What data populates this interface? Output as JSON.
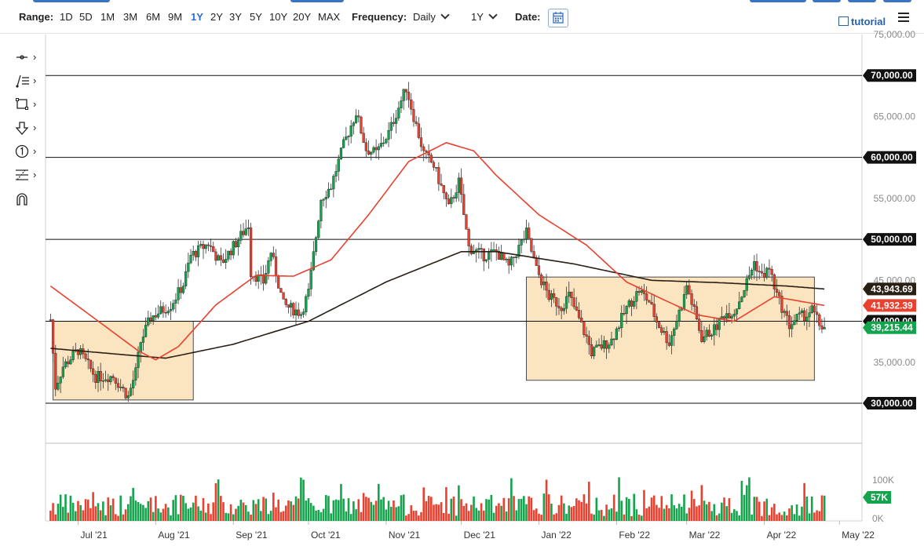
{
  "toolbar": {
    "range_label": "Range:",
    "ranges": [
      "1D",
      "5D",
      "1M",
      "3M",
      "6M",
      "9M",
      "1Y",
      "2Y",
      "3Y",
      "5Y",
      "10Y",
      "20Y",
      "MAX"
    ],
    "active_range": "1Y",
    "frequency_label": "Frequency:",
    "frequency_value": "Daily",
    "period_value": "1Y",
    "date_label": "Date:",
    "tutorial_label": "tutorial"
  },
  "drawing_tools": [
    "crosshair-icon",
    "trendline-icon",
    "rectangle-icon",
    "arrow-down-icon",
    "counter-icon",
    "fib-icon",
    "magnet-icon"
  ],
  "chart_data": {
    "type": "candlestick",
    "y_axis": {
      "min": 30000,
      "max": 75000,
      "ticks": [
        "75,000.00",
        "70,000.00",
        "65,000.00",
        "60,000.00",
        "55,000.00",
        "50,000.00",
        "45,000.00",
        "40,000.00",
        "35,000.00",
        "30,000.00"
      ]
    },
    "x_axis_ticks": [
      "Jul '21",
      "Aug '21",
      "Sep '21",
      "Oct '21",
      "Nov '21",
      "Dec '21",
      "Jan '22",
      "Feb '22",
      "Mar '22",
      "Apr '22",
      "May '22"
    ],
    "horizontal_levels": [
      70000,
      60000,
      50000,
      40000,
      30000
    ],
    "level_labels": [
      "70,000.00",
      "60,000.00",
      "50,000.00",
      "40,000.00",
      "30,000.00"
    ],
    "price_labels": [
      {
        "value": 43943.69,
        "text": "43,943.69",
        "color": "#2a1f14",
        "series": "sma-long"
      },
      {
        "value": 41932.39,
        "text": "41,932.39",
        "color": "#e9412f",
        "series": "sma-short"
      },
      {
        "value": 39215.44,
        "text": "39,215.44",
        "color": "#14a44d",
        "series": "last"
      }
    ],
    "boxes": [
      {
        "from": "2021-06-21",
        "to": "2021-08-16",
        "low": 30400,
        "high": 40000
      },
      {
        "from": "2021-12-27",
        "to": "2022-04-21",
        "low": 32800,
        "high": 45400
      }
    ],
    "volume_axis": {
      "ticks": [
        "100K",
        "0K"
      ],
      "max": 125000
    },
    "volume_last": "57K",
    "colors": {
      "up": "#14a44d",
      "down": "#e9412f",
      "sma_short": "#e9412f",
      "sma_long": "#2a1f14",
      "box_fill": "#fbe4c0",
      "box_stroke": "#4a4a4a",
      "label_up": "#14a44d",
      "label_dark": "#111111"
    },
    "price_anchors": [
      [
        "2021-06-20",
        40200
      ],
      [
        "2021-06-22",
        32000
      ],
      [
        "2021-06-25",
        34500
      ],
      [
        "2021-07-01",
        36500
      ],
      [
        "2021-07-08",
        33200
      ],
      [
        "2021-07-15",
        33300
      ],
      [
        "2021-07-21",
        30800
      ],
      [
        "2021-07-24",
        33800
      ],
      [
        "2021-07-26",
        37500
      ],
      [
        "2021-07-30",
        40500
      ],
      [
        "2021-08-07",
        42000
      ],
      [
        "2021-08-12",
        44500
      ],
      [
        "2021-08-15",
        48000
      ],
      [
        "2021-08-22",
        49500
      ],
      [
        "2021-08-27",
        47000
      ],
      [
        "2021-09-03",
        50000
      ],
      [
        "2021-09-07",
        51800
      ],
      [
        "2021-09-08",
        46000
      ],
      [
        "2021-09-13",
        44800
      ],
      [
        "2021-09-16",
        48500
      ],
      [
        "2021-09-21",
        42000
      ],
      [
        "2021-09-28",
        41000
      ],
      [
        "2021-10-01",
        43500
      ],
      [
        "2021-10-06",
        55000
      ],
      [
        "2021-10-10",
        56500
      ],
      [
        "2021-10-15",
        61500
      ],
      [
        "2021-10-20",
        65500
      ],
      [
        "2021-10-24",
        61000
      ],
      [
        "2021-10-28",
        60500
      ],
      [
        "2021-11-02",
        63000
      ],
      [
        "2021-11-09",
        68500
      ],
      [
        "2021-11-12",
        65000
      ],
      [
        "2021-11-16",
        60500
      ],
      [
        "2021-11-20",
        59000
      ],
      [
        "2021-11-26",
        53800
      ],
      [
        "2021-11-30",
        57000
      ],
      [
        "2021-12-04",
        49000
      ],
      [
        "2021-12-10",
        48000
      ],
      [
        "2021-12-15",
        48500
      ],
      [
        "2021-12-20",
        46600
      ],
      [
        "2021-12-27",
        50800
      ],
      [
        "2021-12-31",
        46300
      ],
      [
        "2022-01-05",
        43000
      ],
      [
        "2022-01-10",
        41800
      ],
      [
        "2022-01-13",
        43200
      ],
      [
        "2022-01-20",
        38000
      ],
      [
        "2022-01-22",
        36200
      ],
      [
        "2022-01-30",
        37700
      ],
      [
        "2022-02-05",
        41600
      ],
      [
        "2022-02-10",
        43800
      ],
      [
        "2022-02-14",
        42400
      ],
      [
        "2022-02-17",
        40000
      ],
      [
        "2022-02-22",
        37400
      ],
      [
        "2022-02-28",
        43000
      ],
      [
        "2022-03-01",
        44400
      ],
      [
        "2022-03-07",
        38000
      ],
      [
        "2022-03-12",
        39000
      ],
      [
        "2022-03-16",
        40900
      ],
      [
        "2022-03-20",
        41200
      ],
      [
        "2022-03-24",
        44000
      ],
      [
        "2022-03-28",
        47200
      ],
      [
        "2022-03-31",
        45500
      ],
      [
        "2022-04-03",
        46400
      ],
      [
        "2022-04-06",
        43200
      ],
      [
        "2022-04-11",
        39500
      ],
      [
        "2022-04-14",
        40400
      ],
      [
        "2022-04-18",
        40800
      ],
      [
        "2022-04-20",
        41400
      ],
      [
        "2022-04-23",
        39600
      ],
      [
        "2022-04-25",
        39215
      ]
    ],
    "sma_short_anchors": [
      [
        "2021-06-20",
        44300
      ],
      [
        "2021-07-10",
        39800
      ],
      [
        "2021-07-25",
        36400
      ],
      [
        "2021-08-01",
        35300
      ],
      [
        "2021-08-10",
        36900
      ],
      [
        "2021-08-25",
        42000
      ],
      [
        "2021-09-10",
        45600
      ],
      [
        "2021-09-25",
        45500
      ],
      [
        "2021-10-10",
        47500
      ],
      [
        "2021-10-25",
        53000
      ],
      [
        "2021-11-10",
        59500
      ],
      [
        "2021-11-25",
        61800
      ],
      [
        "2021-12-06",
        60800
      ],
      [
        "2021-12-15",
        57800
      ],
      [
        "2022-01-01",
        53000
      ],
      [
        "2022-01-20",
        49300
      ],
      [
        "2022-02-05",
        44800
      ],
      [
        "2022-02-20",
        42600
      ],
      [
        "2022-03-05",
        40800
      ],
      [
        "2022-03-20",
        40000
      ],
      [
        "2022-04-05",
        43000
      ],
      [
        "2022-04-25",
        41932
      ]
    ],
    "sma_long_anchors": [
      [
        "2021-06-20",
        36700
      ],
      [
        "2021-07-20",
        35900
      ],
      [
        "2021-08-05",
        35500
      ],
      [
        "2021-09-01",
        37200
      ],
      [
        "2021-10-01",
        40000
      ],
      [
        "2021-11-01",
        44800
      ],
      [
        "2021-12-01",
        48500
      ],
      [
        "2021-12-15",
        48500
      ],
      [
        "2022-01-15",
        47000
      ],
      [
        "2022-02-15",
        45000
      ],
      [
        "2022-03-15",
        44700
      ],
      [
        "2022-04-10",
        44300
      ],
      [
        "2022-04-25",
        43944
      ]
    ]
  }
}
